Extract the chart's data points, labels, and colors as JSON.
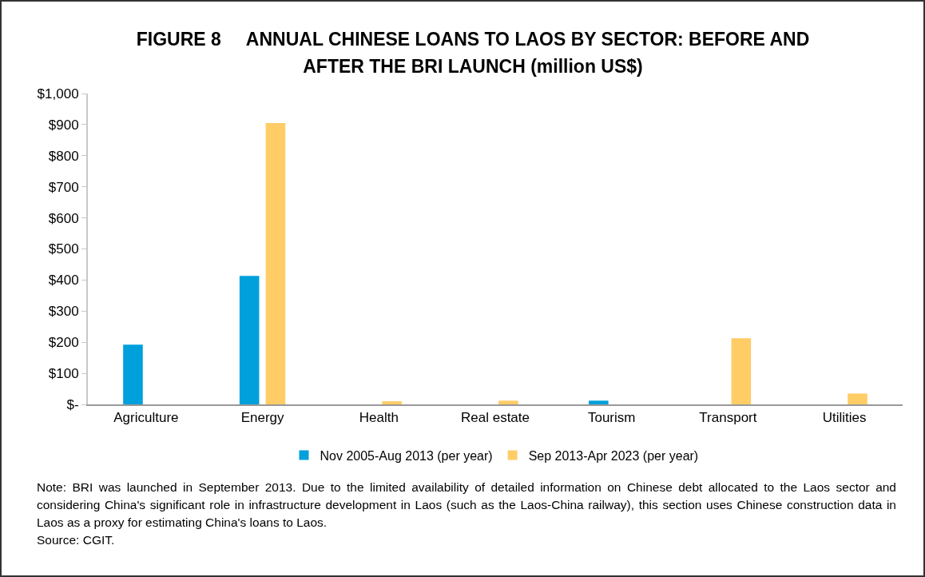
{
  "chart_data": {
    "type": "bar",
    "title": "FIGURE 8     ANNUAL CHINESE LOANS TO LAOS BY SECTOR: BEFORE AND AFTER THE BRI LAUNCH (million US$)",
    "categories": [
      "Agriculture",
      "Energy",
      "Health",
      "Real estate",
      "Tourism",
      "Transport",
      "Utilities"
    ],
    "series": [
      {
        "name": "Nov 2005-Aug 2013 (per year)",
        "color": "#00a0dc",
        "values": [
          192,
          413,
          0,
          0,
          12,
          0,
          0
        ]
      },
      {
        "name": "Sep 2013-Apr 2023 (per year)",
        "color": "#ffcc66",
        "values": [
          0,
          905,
          10,
          12,
          0,
          213,
          35
        ]
      }
    ],
    "ylim": [
      0,
      1000
    ],
    "yticks": [
      {
        "value": 0,
        "label": "$-"
      },
      {
        "value": 100,
        "label": "$100"
      },
      {
        "value": 200,
        "label": "$200"
      },
      {
        "value": 300,
        "label": "$300"
      },
      {
        "value": 400,
        "label": "$400"
      },
      {
        "value": 500,
        "label": "$500"
      },
      {
        "value": 600,
        "label": "$600"
      },
      {
        "value": 700,
        "label": "$700"
      },
      {
        "value": 800,
        "label": "$800"
      },
      {
        "value": 900,
        "label": "$900"
      },
      {
        "value": 1000,
        "label": "$1,000"
      }
    ],
    "grid": false,
    "legend": "bottom",
    "annotations": [
      "Note: BRI was launched in September 2013. Due to the limited availability of detailed information on Chinese debt allocated to the Laos sector and considering China's significant role in infrastructure development in Laos (such as the Laos-China railway), this section uses Chinese construction data in Laos as a proxy for estimating China's loans to Laos.",
      "Source: CGIT."
    ]
  }
}
